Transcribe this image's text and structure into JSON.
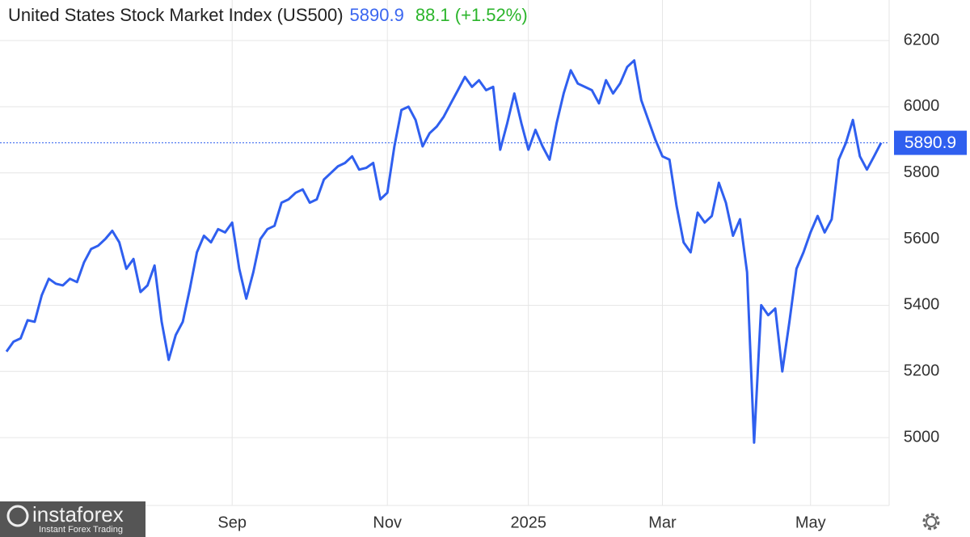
{
  "chart_data": {
    "type": "line",
    "title": "United States Stock Market Index (US500)",
    "price": 5890.9,
    "change": "88.1 (+1.52%)",
    "color": "#2f5fef",
    "grid": true,
    "ylim": [
      4795,
      6320
    ],
    "yticks": [
      5000,
      5200,
      5400,
      5600,
      5800,
      6000,
      6200
    ],
    "categories": [
      null,
      null,
      null,
      null,
      null,
      null,
      null,
      null,
      null,
      null,
      null,
      null,
      null,
      null,
      null,
      null,
      null,
      null,
      null,
      null,
      null,
      null,
      null,
      null,
      null,
      null,
      null,
      null,
      null,
      null,
      null,
      null,
      "Sep",
      null,
      null,
      null,
      null,
      null,
      null,
      null,
      null,
      null,
      null,
      null,
      null,
      null,
      null,
      null,
      null,
      null,
      null,
      null,
      null,
      null,
      "Nov",
      null,
      null,
      null,
      null,
      null,
      null,
      null,
      null,
      null,
      null,
      null,
      null,
      null,
      null,
      null,
      null,
      null,
      null,
      null,
      "2025",
      null,
      null,
      null,
      null,
      null,
      null,
      null,
      null,
      null,
      null,
      null,
      null,
      null,
      null,
      null,
      null,
      null,
      null,
      "Mar",
      null,
      null,
      null,
      null,
      null,
      null,
      null,
      null,
      null,
      null,
      null,
      null,
      null,
      null,
      null,
      null,
      null,
      null,
      null,
      null,
      "May",
      null,
      null,
      null,
      null,
      null,
      null,
      null,
      null,
      null,
      null
    ],
    "values": [
      5260,
      5290,
      5300,
      5355,
      5350,
      5430,
      5480,
      5465,
      5460,
      5480,
      5470,
      5530,
      5570,
      5580,
      5600,
      5625,
      5590,
      5510,
      5540,
      5440,
      5460,
      5520,
      5350,
      5235,
      5310,
      5350,
      5450,
      5560,
      5610,
      5590,
      5630,
      5620,
      5650,
      5510,
      5420,
      5500,
      5600,
      5630,
      5640,
      5710,
      5720,
      5740,
      5750,
      5710,
      5720,
      5780,
      5800,
      5820,
      5830,
      5850,
      5810,
      5815,
      5830,
      5720,
      5740,
      5880,
      5990,
      6000,
      5960,
      5880,
      5920,
      5940,
      5970,
      6010,
      6050,
      6090,
      6060,
      6080,
      6050,
      6060,
      5870,
      5950,
      6040,
      5950,
      5870,
      5930,
      5880,
      5840,
      5950,
      6040,
      6110,
      6070,
      6060,
      6050,
      6010,
      6080,
      6040,
      6070,
      6120,
      6140,
      6020,
      5960,
      5900,
      5850,
      5840,
      5700,
      5590,
      5560,
      5680,
      5650,
      5670,
      5770,
      5710,
      5610,
      5660,
      5500,
      4985,
      5400,
      5370,
      5390,
      5200,
      5350,
      5510,
      5560,
      5620,
      5670,
      5620,
      5660,
      5840,
      5890,
      5960,
      5850,
      5810,
      5850,
      5890.9
    ]
  },
  "watermark": {
    "brand": "instaforex",
    "tagline": "Instant Forex Trading"
  }
}
